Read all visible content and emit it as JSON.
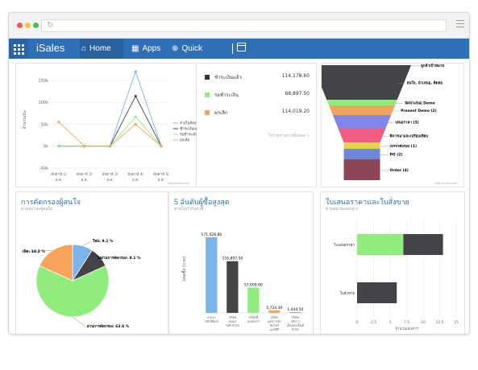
{
  "nav": {
    "brand": "iSales",
    "tabs": [
      {
        "label": "Home",
        "icon": "home-icon"
      },
      {
        "label": "Apps",
        "icon": "apps-icon"
      },
      {
        "label": "Quick Create",
        "icon": "plus-circle-icon"
      }
    ]
  },
  "summary": {
    "rows": [
      {
        "label": "ชำระเงินแล้ว",
        "value": "114,178.60",
        "color": "#333333"
      },
      {
        "label": "รอชำระเงิน",
        "value": "66,897.50",
        "color": "#90ed7d"
      },
      {
        "label": "ยกเลิก",
        "value": "114,019.20",
        "color": "#f7a35c"
      }
    ],
    "link": "ไปรายงานการทั้งหมด »"
  },
  "credits": "Highcharts.com",
  "line_panel": {
    "yaxis_label": "จำนวนเงิน",
    "legend": [
      "ร่างใบสั่งขาย",
      "ชำระเงินแล้ว",
      "รอชำระเงิน",
      "ยกเลิก"
    ]
  },
  "funnel_panel": {
    "labels": [
      "ลูกค้าเป้าหมาย",
      "สนใจ, นำเสนอ, ติดต่อ",
      "นัดนำเสนอ Demo",
      "Present Demo (2)",
      "เสนอราคา (3)",
      "พิจารณาและเปรียบเทียบ",
      "เจรจาต่อรอง (1)",
      "PO (2)",
      "Order (4)"
    ]
  },
  "pie_panel": {
    "title": "การคัดกรองผู้สนใจ",
    "subtitle": "ตามสถานะผู้สนใจ",
    "labels": [
      "ใหม่: 9.1 %",
      "ไม่ผ่านการคัดกรอง: 9.1 %",
      "ผ่านการคัดกรอง: 63.6 %",
      "เปิด: 18.2 %"
    ]
  },
  "top5_panel": {
    "title": "5 อันดับผู้ซื้อสูงสุด",
    "subtitle": "ตามใบกำกับภาษี",
    "yaxis_label": "ยอดซื้อ (บาท)",
    "value_labels": [
      "171,028.80",
      "116,897.50",
      "57,009.60",
      "5,724.30",
      "1,444.50"
    ],
    "category_labels": [
      [
        "บายนา",
        "ฟลิปปี้คอร์"
      ],
      [
        "บริษัท",
        "อรุณฯ",
        "ไอที จำกัด"
      ],
      [
        "บริษัทนี้",
        "เพลย์ฟาร์"
      ],
      [
        "บริษัท",
        "แสงการค้า",
        "อิมโปร์",
        "เอฟซีจี"
      ],
      [
        "บริษัท",
        "อลิบาว",
        "เจ็ดสองเอ็นท์",
        "จำกัด"
      ]
    ]
  },
  "offers_panel": {
    "title": "ใบเสนอราคาและใบสั่งขาย",
    "subtitle": "ตามสถานะเอกสาร",
    "categories": [
      "ใบเสนอราคา",
      "ใบสั่งขาย"
    ],
    "xaxis_label": "จำนวนเอกสาร"
  },
  "chart_data": [
    {
      "type": "line",
      "x": [
        "สัปดาห์ 1/ ส.ค.",
        "สัปดาห์ 2/ ส.ค.",
        "สัปดาห์ 3/ ส.ค.",
        "สัปดาห์ 4/ ส.ค.",
        "สัปดาห์ 5/ ส.ค."
      ],
      "yticks": [
        "-50k",
        "0k",
        "50k",
        "100k",
        "150k"
      ],
      "ylim": [
        -50000,
        170000
      ],
      "series": [
        {
          "name": "ร่างใบสั่งขาย",
          "color": "#7cb5ec",
          "values": [
            0,
            0,
            0,
            170000,
            0
          ]
        },
        {
          "name": "ชำระเงินแล้ว",
          "color": "#434348",
          "values": [
            0,
            0,
            0,
            114000,
            0
          ]
        },
        {
          "name": "รอชำระเงิน",
          "color": "#90ed7d",
          "values": [
            0,
            0,
            0,
            67000,
            0
          ]
        },
        {
          "name": "ยกเลิก",
          "color": "#f7a35c",
          "values": [
            55000,
            0,
            0,
            50000,
            0
          ]
        }
      ]
    },
    {
      "type": "funnel",
      "stages": [
        {
          "label": "ลูกค้าเป้าหมาย",
          "color": "#7cb5ec"
        },
        {
          "label": "สนใจ, นำเสนอ, ติดต่อ",
          "color": "#434348"
        },
        {
          "label": "นัดนำเสนอ Demo",
          "color": "#90ed7d"
        },
        {
          "label": "Present Demo (2)",
          "color": "#f7a35c"
        },
        {
          "label": "เสนอราคา (3)",
          "color": "#8085e9"
        },
        {
          "label": "พิจารณาและเปรียบเทียบ",
          "color": "#f15c80"
        },
        {
          "label": "เจรจาต่อรอง (1)",
          "color": "#e4d354"
        },
        {
          "label": "PO (2)",
          "color": "#6f87d8"
        },
        {
          "label": "Order (4)",
          "color": "#8d4653"
        }
      ]
    },
    {
      "type": "pie",
      "slices": [
        {
          "label": "ใหม่",
          "value": 9.1,
          "color": "#7cb5ec"
        },
        {
          "label": "ไม่ผ่านการคัดกรอง",
          "value": 9.1,
          "color": "#434348"
        },
        {
          "label": "ผ่านการคัดกรอง",
          "value": 63.6,
          "color": "#90ed7d"
        },
        {
          "label": "เปิด",
          "value": 18.2,
          "color": "#f7a35c"
        }
      ]
    },
    {
      "type": "bar",
      "categories": [
        "บายนา ฟลิปปี้คอร์",
        "บริษัท อรุณฯ ไอที จำกัด",
        "บริษัทนี้ เพลย์ฟาร์",
        "บริษัท แสงการค้า อิมโปร์",
        "บริษัท อลิบาว"
      ],
      "values": [
        171028.8,
        116897.5,
        57009.6,
        5724.3,
        1444.5
      ],
      "colors": [
        "#7cb5ec",
        "#434348",
        "#90ed7d",
        "#f7a35c",
        "#8085e9"
      ],
      "ylim": [
        0,
        200000
      ]
    },
    {
      "type": "bar",
      "orientation": "horizontal",
      "categories": [
        "ใบเสนอราคา",
        "ใบสั่งขาย"
      ],
      "xticks": [
        "0",
        "2.5",
        "5",
        "7.5",
        "10",
        "12.5",
        "15"
      ],
      "xlim": [
        0,
        15
      ],
      "series": [
        {
          "color": "#90ed7d",
          "values": [
            7,
            0
          ]
        },
        {
          "color": "#434348",
          "values": [
            6,
            6
          ]
        }
      ]
    }
  ]
}
